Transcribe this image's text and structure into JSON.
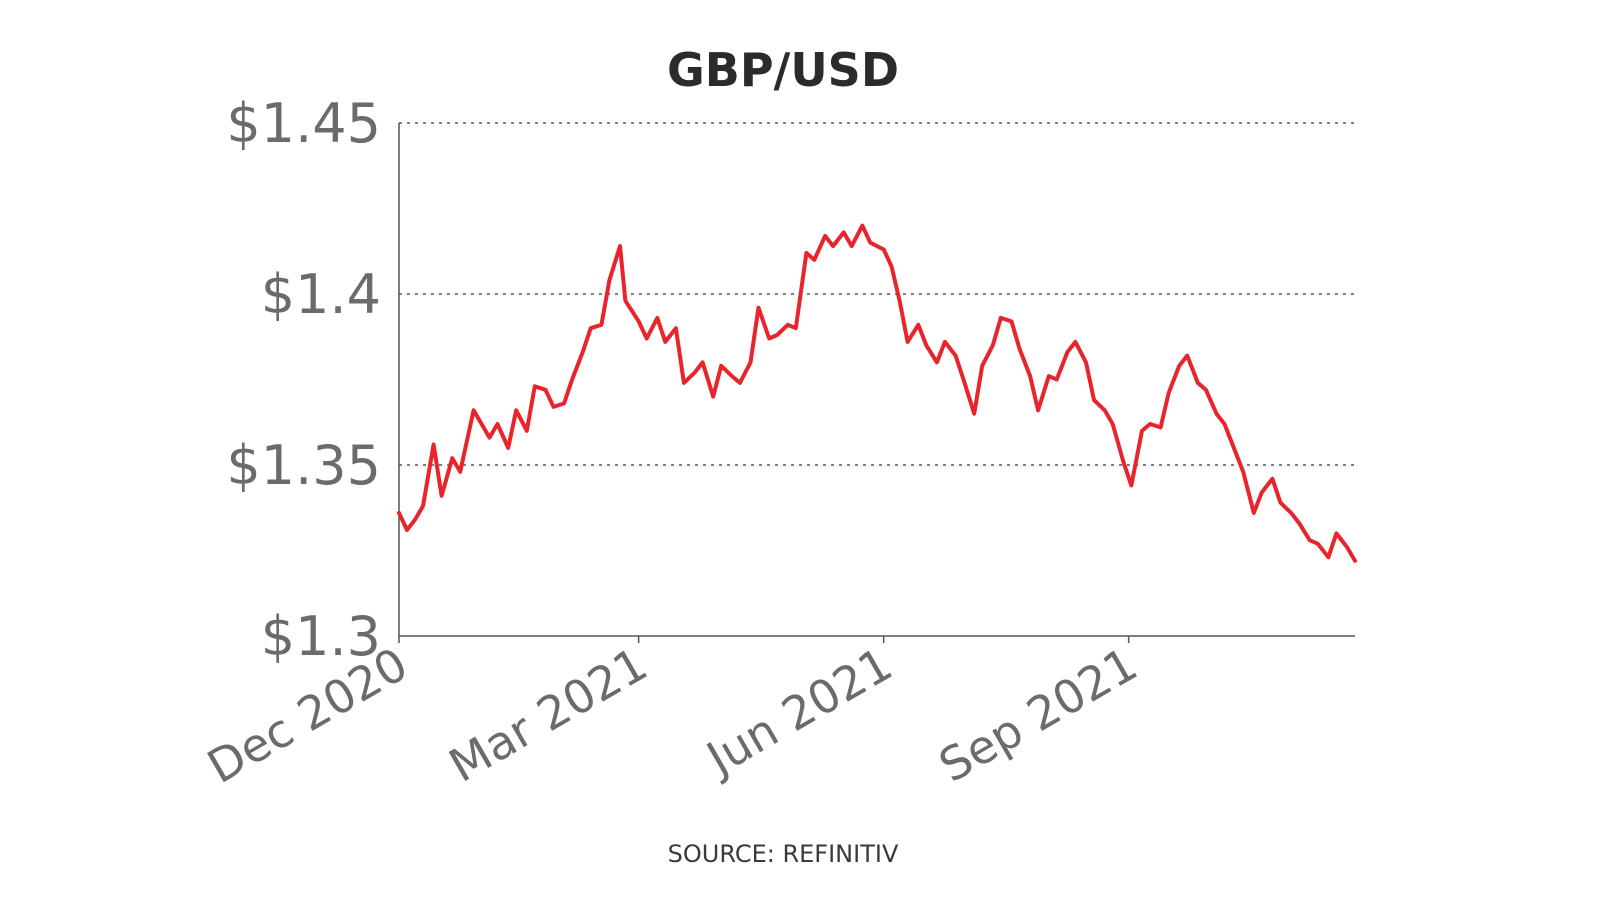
{
  "chart_data": {
    "type": "line",
    "title": "GBP/USD",
    "source": "SOURCE: REFINITIV",
    "xlabel": "",
    "ylabel": "",
    "ylim": [
      1.3,
      1.45
    ],
    "xlim": [
      "2020-12-01",
      "2021-11-25"
    ],
    "y_ticks": [
      1.3,
      1.35,
      1.4,
      1.45
    ],
    "y_tick_labels": [
      "$1.3",
      "$1.35",
      "$1.4",
      "$1.45"
    ],
    "x_ticks": [
      "2020-12-01",
      "2021-03-01",
      "2021-06-01",
      "2021-09-01"
    ],
    "x_tick_labels": [
      "Dec 2020",
      "Mar 2021",
      "Jun 2021",
      "Sep 2021"
    ],
    "grid": true,
    "legend": "none",
    "colors": {
      "series": "#e8242c",
      "title": "#2b2b2b",
      "ticks": "#6b6b6b"
    },
    "series": [
      {
        "x": [
          "2020-12-01",
          "2020-12-04",
          "2020-12-07",
          "2020-12-10",
          "2020-12-14",
          "2020-12-17",
          "2020-12-21",
          "2020-12-24",
          "2020-12-29",
          "2021-01-04",
          "2021-01-07",
          "2021-01-11",
          "2021-01-14",
          "2021-01-18",
          "2021-01-21",
          "2021-01-25",
          "2021-01-28",
          "2021-02-01",
          "2021-02-04",
          "2021-02-08",
          "2021-02-11",
          "2021-02-15",
          "2021-02-18",
          "2021-02-22",
          "2021-02-24",
          "2021-03-01",
          "2021-03-04",
          "2021-03-08",
          "2021-03-11",
          "2021-03-15",
          "2021-03-18",
          "2021-03-22",
          "2021-03-25",
          "2021-03-29",
          "2021-04-01",
          "2021-04-05",
          "2021-04-08",
          "2021-04-12",
          "2021-04-15",
          "2021-04-19",
          "2021-04-22",
          "2021-04-26",
          "2021-04-29",
          "2021-05-03",
          "2021-05-06",
          "2021-05-10",
          "2021-05-13",
          "2021-05-17",
          "2021-05-20",
          "2021-05-24",
          "2021-05-27",
          "2021-06-01",
          "2021-06-04",
          "2021-06-07",
          "2021-06-10",
          "2021-06-14",
          "2021-06-17",
          "2021-06-21",
          "2021-06-24",
          "2021-06-28",
          "2021-07-01",
          "2021-07-05",
          "2021-07-08",
          "2021-07-12",
          "2021-07-15",
          "2021-07-19",
          "2021-07-22",
          "2021-07-26",
          "2021-07-29",
          "2021-08-02",
          "2021-08-05",
          "2021-08-09",
          "2021-08-12",
          "2021-08-16",
          "2021-08-19",
          "2021-08-23",
          "2021-08-26",
          "2021-08-30",
          "2021-09-02",
          "2021-09-06",
          "2021-09-09",
          "2021-09-13",
          "2021-09-16",
          "2021-09-20",
          "2021-09-23",
          "2021-09-27",
          "2021-09-30",
          "2021-10-04",
          "2021-10-07",
          "2021-10-11",
          "2021-10-14",
          "2021-10-18",
          "2021-10-21",
          "2021-10-25",
          "2021-10-28",
          "2021-11-01",
          "2021-11-04",
          "2021-11-08",
          "2021-11-11",
          "2021-11-15",
          "2021-11-18",
          "2021-11-22",
          "2021-11-25"
        ],
        "y": [
          1.336,
          1.331,
          1.334,
          1.338,
          1.356,
          1.341,
          1.352,
          1.348,
          1.366,
          1.358,
          1.362,
          1.355,
          1.366,
          1.36,
          1.373,
          1.372,
          1.367,
          1.368,
          1.375,
          1.383,
          1.39,
          1.391,
          1.404,
          1.414,
          1.398,
          1.392,
          1.387,
          1.393,
          1.386,
          1.39,
          1.374,
          1.377,
          1.38,
          1.37,
          1.379,
          1.376,
          1.374,
          1.38,
          1.396,
          1.387,
          1.388,
          1.391,
          1.39,
          1.412,
          1.41,
          1.417,
          1.414,
          1.418,
          1.414,
          1.42,
          1.415,
          1.413,
          1.408,
          1.398,
          1.386,
          1.391,
          1.385,
          1.38,
          1.386,
          1.382,
          1.375,
          1.365,
          1.379,
          1.385,
          1.393,
          1.392,
          1.384,
          1.376,
          1.366,
          1.376,
          1.375,
          1.383,
          1.386,
          1.38,
          1.369,
          1.366,
          1.362,
          1.351,
          1.344,
          1.36,
          1.362,
          1.361,
          1.371,
          1.379,
          1.382,
          1.374,
          1.372,
          1.365,
          1.362,
          1.354,
          1.348,
          1.336,
          1.342,
          1.346,
          1.339,
          1.336,
          1.333,
          1.328,
          1.327,
          1.323,
          1.33,
          1.326,
          1.322
        ]
      }
    ]
  }
}
